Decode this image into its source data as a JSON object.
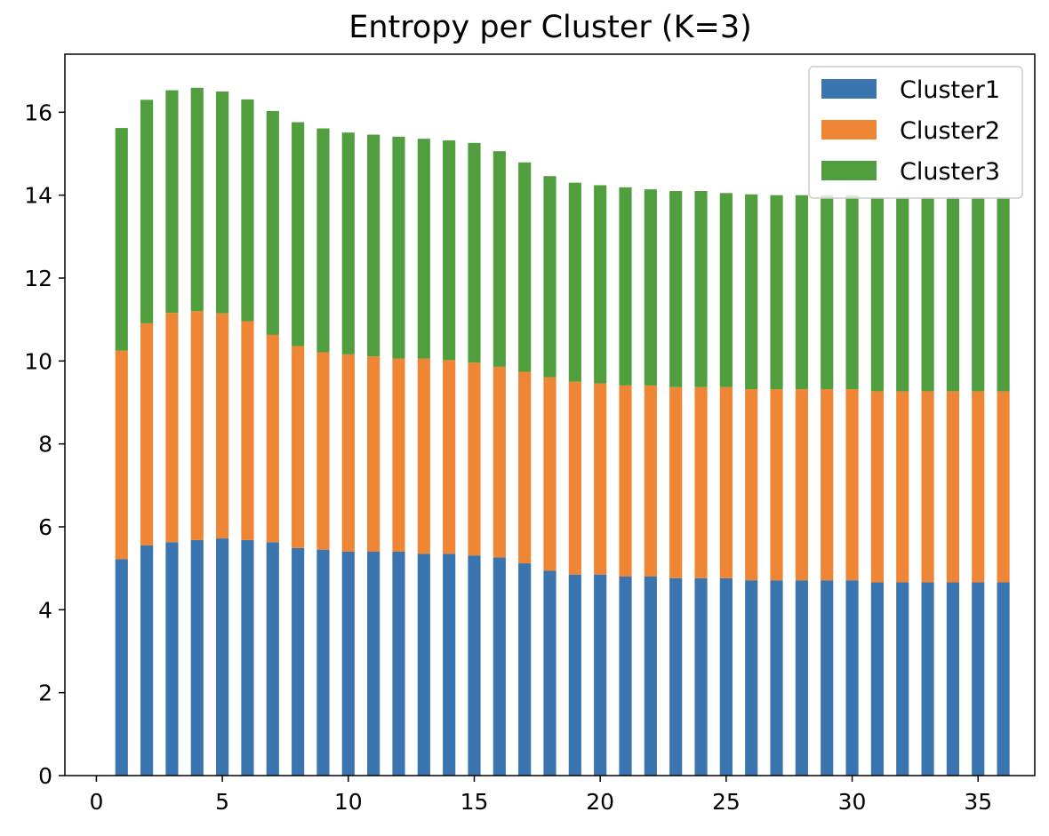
{
  "chart_data": {
    "type": "bar",
    "stacked": true,
    "title": "Entropy per Cluster (K=3)",
    "xlabel": "",
    "ylabel": "",
    "xlim": [
      -1.25,
      37.25
    ],
    "ylim": [
      0,
      17.4
    ],
    "grid": false,
    "legend_position": "top-right",
    "x": [
      1,
      2,
      3,
      4,
      5,
      6,
      7,
      8,
      9,
      10,
      11,
      12,
      13,
      14,
      15,
      16,
      17,
      18,
      19,
      20,
      21,
      22,
      23,
      24,
      25,
      26,
      27,
      28,
      29,
      30,
      31,
      32,
      33,
      34,
      35,
      36
    ],
    "series": [
      {
        "name": "Cluster1",
        "color": "#3b75af",
        "values": [
          5.22,
          5.55,
          5.63,
          5.68,
          5.72,
          5.68,
          5.63,
          5.49,
          5.45,
          5.4,
          5.4,
          5.4,
          5.35,
          5.35,
          5.31,
          5.26,
          5.12,
          4.94,
          4.85,
          4.85,
          4.8,
          4.8,
          4.76,
          4.76,
          4.76,
          4.71,
          4.71,
          4.71,
          4.71,
          4.71,
          4.66,
          4.66,
          4.66,
          4.66,
          4.66,
          4.66
        ]
      },
      {
        "name": "Cluster2",
        "color": "#ef8636",
        "values": [
          5.03,
          5.36,
          5.53,
          5.52,
          5.43,
          5.28,
          5.0,
          4.87,
          4.76,
          4.76,
          4.71,
          4.66,
          4.71,
          4.67,
          4.65,
          4.6,
          4.62,
          4.67,
          4.65,
          4.61,
          4.61,
          4.61,
          4.61,
          4.61,
          4.61,
          4.61,
          4.61,
          4.61,
          4.61,
          4.61,
          4.61,
          4.61,
          4.61,
          4.61,
          4.61,
          4.61
        ]
      },
      {
        "name": "Cluster3",
        "color": "#519e3e",
        "values": [
          5.37,
          5.39,
          5.37,
          5.39,
          5.35,
          5.35,
          5.4,
          5.4,
          5.4,
          5.35,
          5.35,
          5.35,
          5.3,
          5.3,
          5.3,
          5.2,
          5.05,
          4.85,
          4.8,
          4.78,
          4.78,
          4.73,
          4.73,
          4.73,
          4.68,
          4.7,
          4.68,
          4.68,
          4.68,
          4.68,
          4.68,
          4.68,
          4.68,
          4.68,
          4.68,
          4.68
        ]
      }
    ],
    "xticks": [
      "0",
      "5",
      "10",
      "15",
      "20",
      "25",
      "30",
      "35"
    ],
    "yticks": [
      "0",
      "2",
      "4",
      "6",
      "8",
      "10",
      "12",
      "14",
      "16"
    ]
  }
}
